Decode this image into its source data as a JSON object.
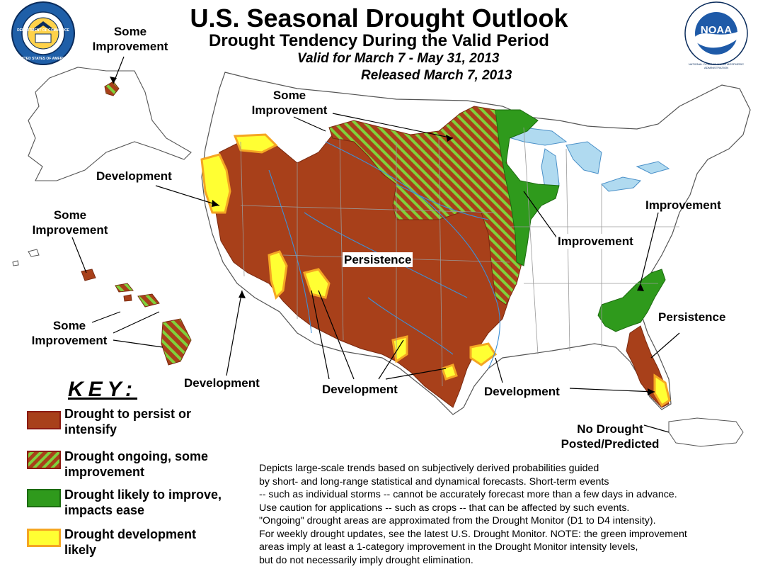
{
  "title": "U.S. Seasonal Drought Outlook",
  "subtitle": "Drought Tendency During the Valid Period",
  "valid_period": "Valid for March 7 - May 31, 2013",
  "released": "Released March 7, 2013",
  "map_labels": {
    "alaska_some_improvement_1": "Some",
    "alaska_some_improvement_2": "Improvement",
    "northern_some_improvement_1": "Some",
    "northern_some_improvement_2": "Improvement",
    "development_west": "Development",
    "hawaii_some_improvement_top_1": "Some",
    "hawaii_some_improvement_top_2": "Improvement",
    "hawaii_some_improvement_bottom_1": "Some",
    "hawaii_some_improvement_bottom_2": "Improvement",
    "persistence_central": "Persistence",
    "improvement_midwest": "Improvement",
    "improvement_east": "Improvement",
    "persistence_southeast": "Persistence",
    "development_southwest": "Development",
    "development_texas": "Development",
    "development_gulf": "Development",
    "no_drought_1": "No Drought",
    "no_drought_2": "Posted/Predicted"
  },
  "key": {
    "title": "KEY:",
    "items": [
      {
        "line1": "Drought to persist or",
        "line2": "intensify",
        "color": "#a8401a"
      },
      {
        "line1": "Drought ongoing, some",
        "line2": "improvement",
        "color": "#a8401a",
        "hatch": "#7fd13b"
      },
      {
        "line1": "Drought likely to improve,",
        "line2": "impacts ease",
        "color": "#2f9a1c"
      },
      {
        "line1": "Drought development",
        "line2": "likely",
        "color": "#ffff33",
        "border": "#f5a623"
      }
    ]
  },
  "description": [
    "Depicts large-scale trends based on subjectively derived probabilities guided",
    "by short- and long-range statistical and dynamical forecasts. Short-term events",
    "-- such as individual storms -- cannot be accurately forecast more than a few days in advance.",
    "Use caution for applications -- such as crops -- that can be affected by such events.",
    "\"Ongoing\" drought areas are approximated from the Drought Monitor (D1 to D4 intensity).",
    "For weekly drought updates, see the latest U.S. Drought Monitor. NOTE: the green improvement",
    "areas imply at least a 1-category improvement in the Drought Monitor intensity levels,",
    "but do not necessarily imply drought elimination."
  ],
  "colors": {
    "persist": "#a8401a",
    "hatch_green": "#7fd13b",
    "improve": "#2f9a1c",
    "development": "#ffff33",
    "development_border": "#f5a623",
    "water": "#b0daf0",
    "river": "#3d8fd6"
  },
  "logos": {
    "commerce_seal": "DEPARTMENT OF COMMERCE",
    "commerce_seal_bottom": "UNITED STATES OF AMERICA",
    "noaa_text": "NOAA",
    "noaa_ring": "NATIONAL OCEANIC AND ATMOSPHERIC ADMINISTRATION"
  }
}
